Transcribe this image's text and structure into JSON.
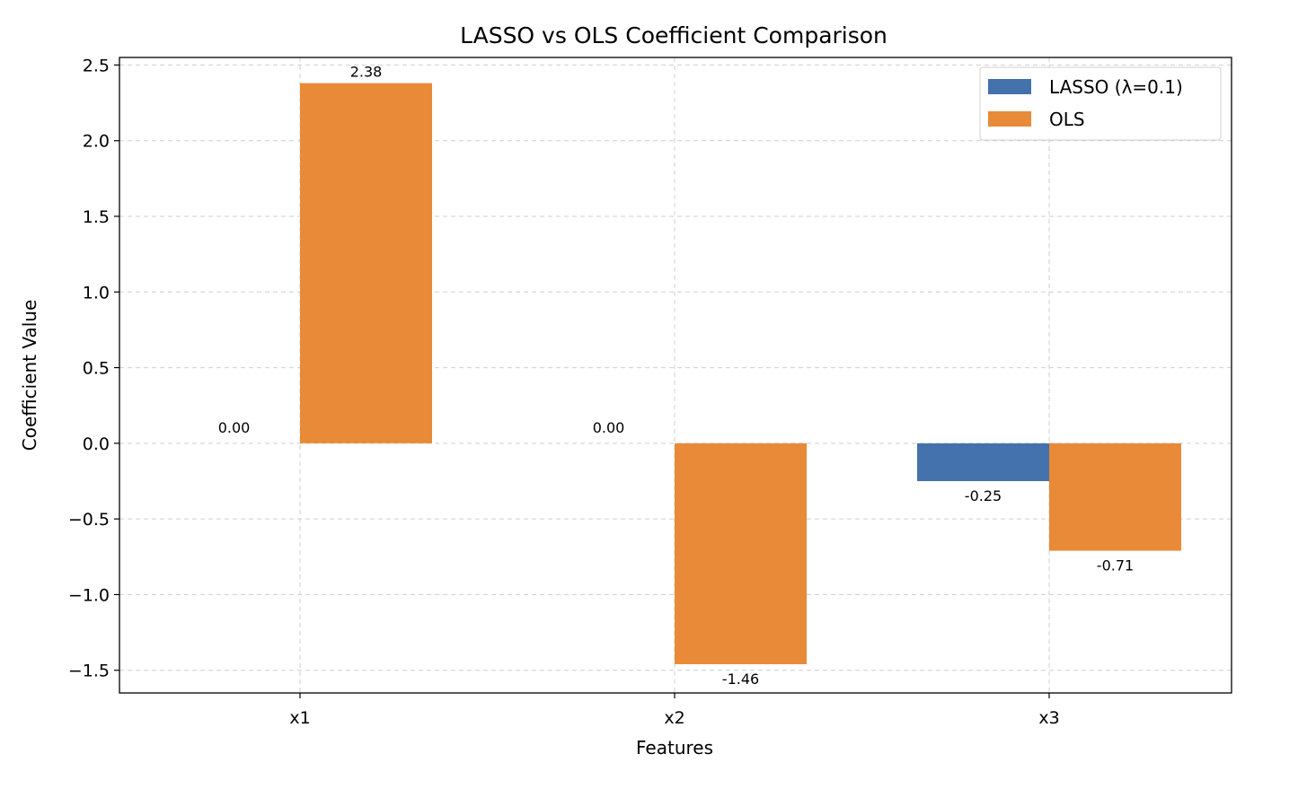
{
  "chart_data": {
    "type": "bar",
    "title": "LASSO vs OLS Coefficient Comparison",
    "xlabel": "Features",
    "ylabel": "Coefficient Value",
    "categories": [
      "x1",
      "x2",
      "x3"
    ],
    "series": [
      {
        "name": "LASSO (λ=0.1)",
        "values": [
          0.0,
          0.0,
          -0.25
        ],
        "labels": [
          "0.00",
          "0.00",
          "-0.25"
        ],
        "color": "#4472ad"
      },
      {
        "name": "OLS",
        "values": [
          2.38,
          -1.46,
          -0.71
        ],
        "labels": [
          "2.38",
          "-1.46",
          "-0.71"
        ],
        "color": "#e88a37"
      }
    ],
    "ylim": [
      -1.65,
      2.55
    ],
    "yticks": [
      2.5,
      2.0,
      1.5,
      1.0,
      0.5,
      0.0,
      -0.5,
      -1.0,
      -1.5
    ],
    "ytick_labels": [
      "2.5",
      "2.0",
      "1.5",
      "1.0",
      "0.5",
      "0.0",
      "−0.5",
      "−1.0",
      "−1.5"
    ],
    "grid": true,
    "legend_position": "top-right"
  }
}
